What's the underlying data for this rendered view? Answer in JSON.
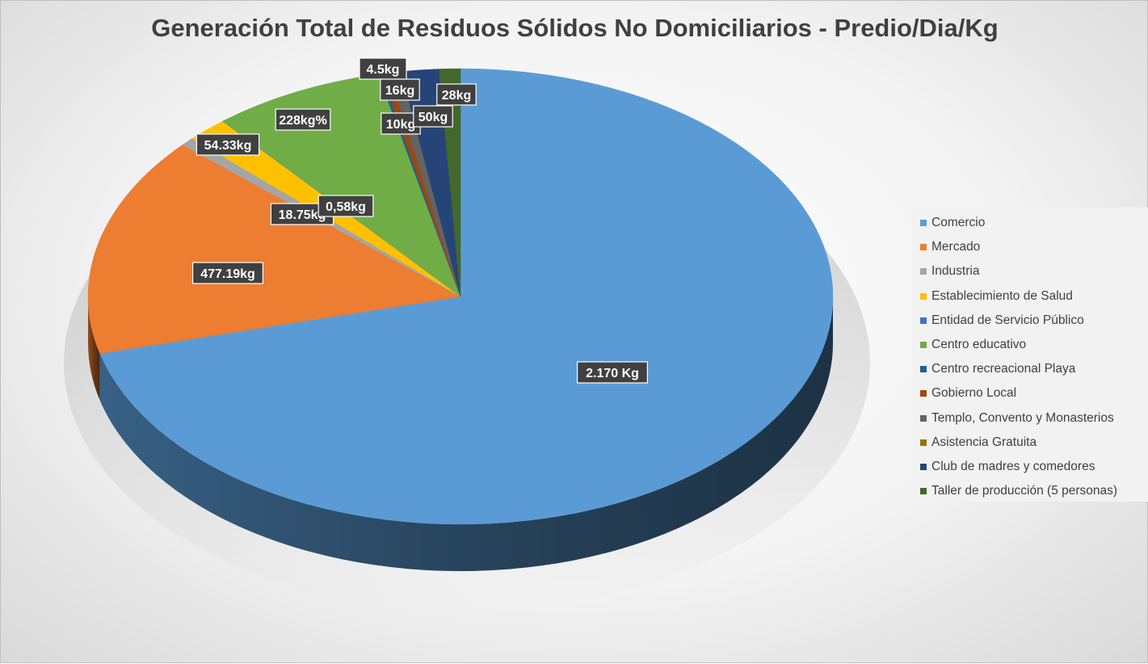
{
  "chart_data": {
    "type": "pie",
    "title": "Generación Total de Residuos Sólidos No Domiciliarios - Predio/Dia/Kg",
    "categories": [
      "Comercio",
      "Mercado",
      "Industria",
      "Establecimiento de Salud",
      "Entidad de Servicio Público",
      "Centro educativo",
      "Centro recreacional Playa",
      "Gobierno Local",
      "Templo, Convento y Monasterios",
      "Asistencia Gratuita",
      "Club de madres y comedores",
      "Taller de producción (5 personas)"
    ],
    "values": [
      2170,
      477.19,
      18.75,
      54.33,
      0.58,
      228,
      4.5,
      10,
      16,
      0,
      50,
      28
    ],
    "data_labels": [
      "2.170 Kg",
      "477.19kg",
      "18.75kg",
      "54.33kg",
      "0,58kg",
      "228kg%",
      "4.5kg",
      "10kg",
      "16kg",
      "",
      "50kg",
      "28kg"
    ],
    "colors": [
      "#5B9BD5",
      "#ED7D31",
      "#A5A5A5",
      "#FFC000",
      "#4472C4",
      "#70AD47",
      "#255E91",
      "#9E480E",
      "#636363",
      "#997300",
      "#264478",
      "#43682B"
    ],
    "legend_position": "right",
    "style": "3d"
  }
}
